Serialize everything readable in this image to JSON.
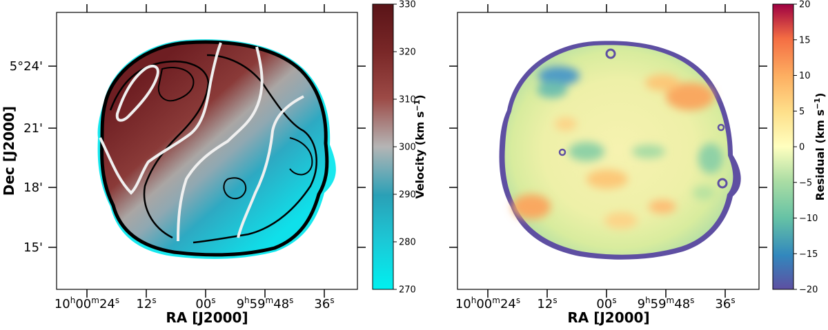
{
  "chart_data": [
    {
      "type": "heatmap",
      "panel": "velocity",
      "xlabel": "RA [J2000]",
      "ylabel": "Dec [J2000]",
      "x_ticks": [
        "10h00m24s",
        "12s",
        "00s",
        "9h59m48s",
        "36s"
      ],
      "x_tick_parts": [
        {
          "main": "10",
          "sup1": "h",
          "mid": "00",
          "sup2": "m",
          "tail": "24",
          "sup3": "s"
        },
        {
          "main": "12",
          "sup1": "s"
        },
        {
          "main": "00",
          "sup1": "s"
        },
        {
          "main": "9",
          "sup1": "h",
          "mid": "59",
          "sup2": "m",
          "tail": "48",
          "sup3": "s"
        },
        {
          "main": "36",
          "sup1": "s"
        }
      ],
      "y_ticks": [
        "5°24'",
        "21'",
        "18'",
        "15'"
      ],
      "colorbar": {
        "label": "Velocity (km s-1)",
        "label_main": "Velocity (km s",
        "label_sup": "−1",
        "label_close": ")",
        "range": [
          270,
          330
        ],
        "ticks": [
          270,
          280,
          290,
          300,
          310,
          320,
          330
        ],
        "colormap": "cyan-grey-maroon"
      }
    },
    {
      "type": "heatmap",
      "panel": "residual",
      "xlabel": "RA [J2000]",
      "x_ticks": [
        "10h00m24s",
        "12s",
        "00s",
        "9h59m48s",
        "36s"
      ],
      "colorbar": {
        "label": "Residual (km s-1)",
        "label_main": "Residual (km s",
        "label_sup": "−1",
        "label_close": ")",
        "range": [
          -20,
          20
        ],
        "ticks": [
          -20,
          -15,
          -10,
          -5,
          0,
          5,
          10,
          15,
          20
        ],
        "colormap": "spectral"
      }
    }
  ]
}
